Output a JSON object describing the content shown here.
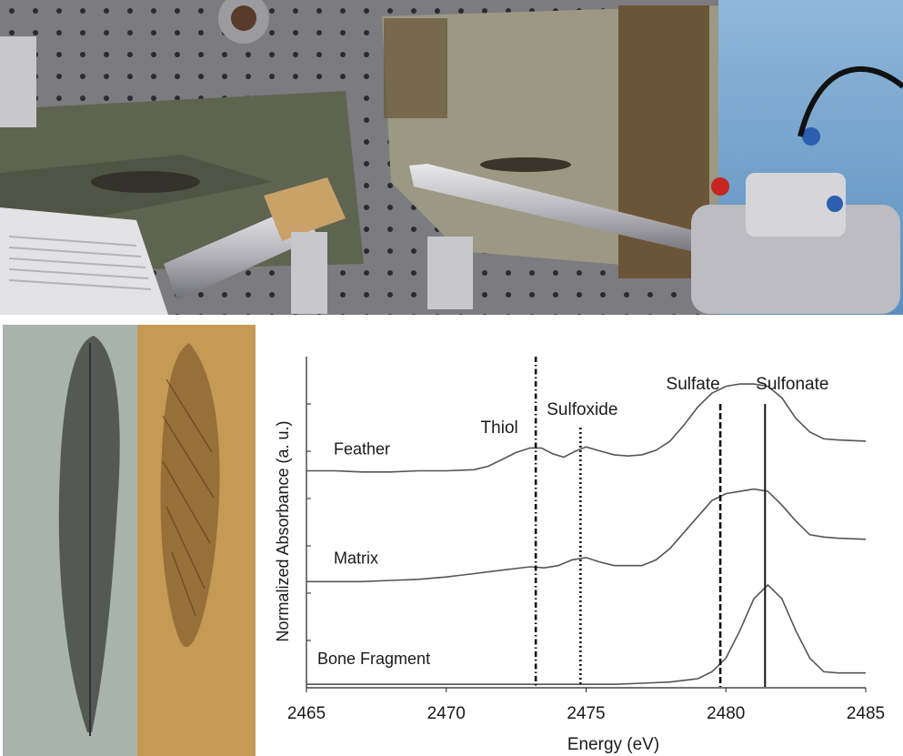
{
  "figure": {
    "top_photo_description_icon": "beamline-sample-stage-photo",
    "left_photo_description_icon": "fossil-feather-photo"
  },
  "colors": {
    "curve": "#555555",
    "marker": "#111111",
    "axis": "#222222"
  },
  "chart_data": {
    "type": "line",
    "xlabel": "Energy (eV)",
    "ylabel": "Normalized Absorbance (a. u.)",
    "xlim": [
      2465,
      2485
    ],
    "xticks": [
      "2465",
      "2470",
      "2475",
      "2480",
      "2485"
    ],
    "grid": false,
    "series": [
      {
        "name": "Feather",
        "points": [
          [
            2465,
            0.5
          ],
          [
            2466,
            0.5
          ],
          [
            2467,
            0.495
          ],
          [
            2468,
            0.495
          ],
          [
            2469,
            0.5
          ],
          [
            2470,
            0.5
          ],
          [
            2471,
            0.505
          ],
          [
            2471.5,
            0.52
          ],
          [
            2472,
            0.55
          ],
          [
            2472.5,
            0.58
          ],
          [
            2473,
            0.6
          ],
          [
            2473.4,
            0.6
          ],
          [
            2473.8,
            0.575
          ],
          [
            2474.2,
            0.56
          ],
          [
            2474.6,
            0.585
          ],
          [
            2475,
            0.605
          ],
          [
            2475.4,
            0.59
          ],
          [
            2476,
            0.57
          ],
          [
            2476.5,
            0.565
          ],
          [
            2477,
            0.57
          ],
          [
            2477.5,
            0.59
          ],
          [
            2478,
            0.63
          ],
          [
            2478.5,
            0.7
          ],
          [
            2479,
            0.78
          ],
          [
            2479.5,
            0.84
          ],
          [
            2480,
            0.87
          ],
          [
            2480.5,
            0.88
          ],
          [
            2481,
            0.88
          ],
          [
            2481.5,
            0.87
          ],
          [
            2482,
            0.82
          ],
          [
            2482.5,
            0.73
          ],
          [
            2483,
            0.67
          ],
          [
            2483.5,
            0.64
          ],
          [
            2484,
            0.635
          ],
          [
            2485,
            0.63
          ]
        ]
      },
      {
        "name": "Matrix",
        "points": [
          [
            2465,
            0.015
          ],
          [
            2466,
            0.015
          ],
          [
            2467,
            0.015
          ],
          [
            2468,
            0.02
          ],
          [
            2469,
            0.025
          ],
          [
            2470,
            0.035
          ],
          [
            2471,
            0.05
          ],
          [
            2472,
            0.065
          ],
          [
            2473,
            0.08
          ],
          [
            2473.5,
            0.075
          ],
          [
            2474,
            0.085
          ],
          [
            2474.5,
            0.11
          ],
          [
            2475,
            0.12
          ],
          [
            2475.5,
            0.1
          ],
          [
            2476,
            0.085
          ],
          [
            2477,
            0.085
          ],
          [
            2477.5,
            0.11
          ],
          [
            2478,
            0.16
          ],
          [
            2478.5,
            0.23
          ],
          [
            2479,
            0.3
          ],
          [
            2479.5,
            0.37
          ],
          [
            2480,
            0.4
          ],
          [
            2480.5,
            0.41
          ],
          [
            2481,
            0.42
          ],
          [
            2481.5,
            0.41
          ],
          [
            2482,
            0.35
          ],
          [
            2482.5,
            0.28
          ],
          [
            2483,
            0.22
          ],
          [
            2483.5,
            0.21
          ],
          [
            2484,
            0.205
          ],
          [
            2485,
            0.2
          ]
        ]
      },
      {
        "name": "Bone Fragment",
        "points": [
          [
            2465,
            -0.435
          ],
          [
            2470,
            -0.435
          ],
          [
            2475,
            -0.435
          ],
          [
            2476,
            -0.435
          ],
          [
            2477,
            -0.43
          ],
          [
            2478,
            -0.425
          ],
          [
            2479,
            -0.41
          ],
          [
            2479.5,
            -0.38
          ],
          [
            2480,
            -0.32
          ],
          [
            2480.5,
            -0.2
          ],
          [
            2481,
            -0.06
          ],
          [
            2481.5,
            0.0
          ],
          [
            2482,
            -0.06
          ],
          [
            2482.5,
            -0.2
          ],
          [
            2483,
            -0.32
          ],
          [
            2483.5,
            -0.38
          ],
          [
            2484,
            -0.385
          ],
          [
            2485,
            -0.385
          ]
        ]
      }
    ],
    "reference_lines": [
      {
        "label": "Thiol",
        "x": 2473.2,
        "style": "dashdot"
      },
      {
        "label": "Sulfoxide",
        "x": 2474.8,
        "style": "dotted"
      },
      {
        "label": "Sulfate",
        "x": 2479.8,
        "style": "dashed"
      },
      {
        "label": "Sulfonate",
        "x": 2481.4,
        "style": "solid"
      }
    ]
  }
}
